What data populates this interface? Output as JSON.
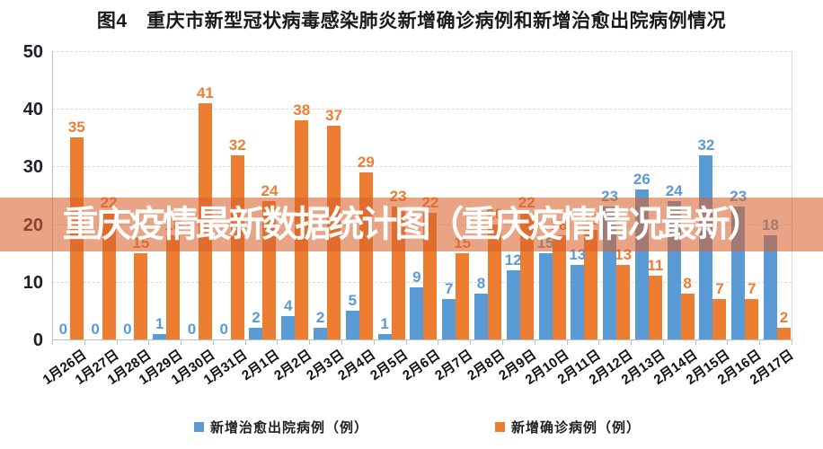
{
  "title": "图4　重庆市新型冠状病毒感染肺炎新增确诊病例和新增治愈出院病例情况",
  "watermark": "重庆疫情最新数据统计图（重庆疫情情况最新）",
  "colors": {
    "cured_blue": "#5B9BD5",
    "confirmed_orange": "#ED7D31",
    "watermark_band": "rgba(215,98,45,0.58)",
    "gridline": "#d9d9d9",
    "axis": "#bfbfbf",
    "tick_text": "#1f1f26"
  },
  "chart_data": {
    "type": "bar",
    "title": "图4　重庆市新型冠状病毒感染肺炎新增确诊病例和新增治愈出院病例情况",
    "categories": [
      "1月26日",
      "1月27日",
      "1月28日",
      "1月29日",
      "1月30日",
      "1月31日",
      "2月1日",
      "2月2日",
      "2月3日",
      "2月4日",
      "2月5日",
      "2月6日",
      "2月7日",
      "2月8日",
      "2月9日",
      "2月10日",
      "2月11日",
      "2月12日",
      "2月13日",
      "2月14日",
      "2月15日",
      "2月16日",
      "2月17日"
    ],
    "series": [
      {
        "name": "新增治愈出院病例（例）",
        "color": "#5B9BD5",
        "values": [
          0,
          0,
          0,
          1,
          0,
          0,
          2,
          4,
          2,
          5,
          1,
          9,
          7,
          8,
          12,
          15,
          13,
          23,
          26,
          24,
          32,
          23,
          18
        ]
      },
      {
        "name": "新增确诊病例（例）",
        "color": "#ED7D31",
        "values": [
          35,
          22,
          15,
          18,
          41,
          32,
          24,
          38,
          37,
          29,
          23,
          22,
          15,
          20,
          22,
          18,
          19,
          13,
          11,
          8,
          7,
          7,
          2
        ]
      }
    ],
    "xlabel": "",
    "ylabel": "",
    "ylim": [
      0,
      50
    ],
    "yticks": [
      0,
      10,
      20,
      30,
      40,
      50
    ],
    "grid": "horizontal-dashed",
    "legend_position": "bottom",
    "bar_value_labels": true
  },
  "legend": {
    "items": [
      {
        "label": "新增治愈出院病例（例）",
        "color": "#5B9BD5"
      },
      {
        "label": "新增确诊病例（例）",
        "color": "#ED7D31"
      }
    ]
  }
}
